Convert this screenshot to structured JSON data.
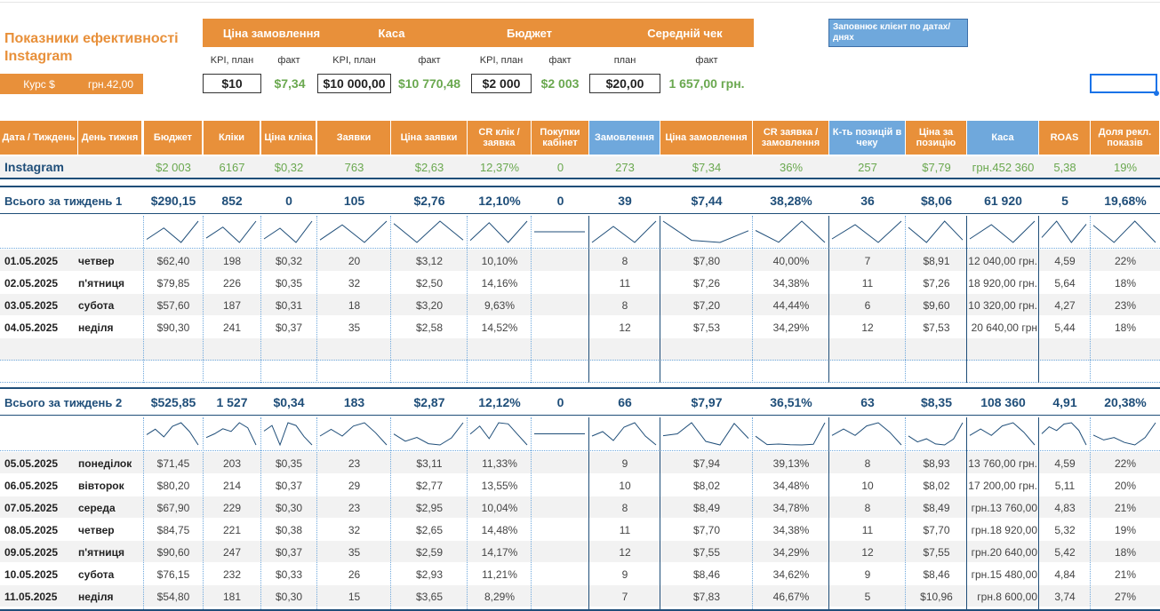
{
  "title": "Показники ефективності Instagram",
  "rate": {
    "label": "Курс $",
    "value": "грн.42,00"
  },
  "kpi_header": [
    "Ціна замовлення",
    "Каса",
    "Бюджет",
    "Середній чек"
  ],
  "kpi_sub": [
    "KPI, план",
    "факт",
    "KPI, план",
    "факт",
    "KPI, план",
    "факт",
    "план",
    "факт"
  ],
  "kpi_values": {
    "order_price_plan": "$10",
    "order_price_fact": "$7,34",
    "kasa_plan": "$10 000,00",
    "kasa_fact": "$10 770,48",
    "budget_plan": "$2 000",
    "budget_fact": "$2 003",
    "avg_check_plan": "$20,00",
    "avg_check_fact": "1 657,00 грн."
  },
  "note": "Заповнює клієнт по датах/днях",
  "columns": [
    "Дата / Тиждень",
    "День тижня",
    "Бюджет",
    "Кліки",
    "Ціна кліка",
    "Заявки",
    "Ціна заявки",
    "CR клік / заявка",
    "Покупки кабінет",
    "Замовлення",
    "Ціна замовлення",
    "CR заявка / замовлення",
    "К-ть позицій в чеку",
    "Ціна за позицію",
    "Каса",
    "ROAS",
    "Доля рекл. показів"
  ],
  "instagram_row": [
    "Instagram",
    "",
    "$2 003",
    "6167",
    "$0,32",
    "763",
    "$2,63",
    "12,37%",
    "0",
    "273",
    "$7,34",
    "36%",
    "257",
    "$7,79",
    "грн.452 360",
    "5,38",
    "19%"
  ],
  "week1": {
    "total": [
      "Всього за тиждень 1",
      "",
      "$290,15",
      "852",
      "0",
      "105",
      "$2,76",
      "12,10%",
      "0",
      "39",
      "$7,44",
      "38,28%",
      "36",
      "$8,06",
      "61 920",
      "5",
      "19,68%"
    ],
    "days": [
      [
        "01.05.2025",
        "четвер",
        "$62,40",
        "198",
        "$0,32",
        "20",
        "$3,12",
        "10,10%",
        "",
        "8",
        "$7,80",
        "40,00%",
        "7",
        "$8,91",
        "12 040,00 грн.",
        "4,59",
        "22%"
      ],
      [
        "02.05.2025",
        "п'ятниця",
        "$79,85",
        "226",
        "$0,35",
        "32",
        "$2,50",
        "14,16%",
        "",
        "11",
        "$7,26",
        "34,38%",
        "11",
        "$7,26",
        "18 920,00 грн.",
        "5,64",
        "18%"
      ],
      [
        "03.05.2025",
        "субота",
        "$57,60",
        "187",
        "$0,31",
        "18",
        "$3,20",
        "9,63%",
        "",
        "8",
        "$7,20",
        "44,44%",
        "6",
        "$9,60",
        "10 320,00 грн.",
        "4,27",
        "23%"
      ],
      [
        "04.05.2025",
        "неділя",
        "$90,30",
        "241",
        "$0,37",
        "35",
        "$2,58",
        "14,52%",
        "",
        "12",
        "$7,53",
        "34,29%",
        "12",
        "$7,53",
        "20 640,00 грн",
        "5,44",
        "18%"
      ]
    ]
  },
  "week2": {
    "total": [
      "Всього за тиждень 2",
      "",
      "$525,85",
      "1 527",
      "$0,34",
      "183",
      "$2,87",
      "12,12%",
      "0",
      "66",
      "$7,97",
      "36,51%",
      "63",
      "$8,35",
      "108 360",
      "4,91",
      "20,38%"
    ],
    "days": [
      [
        "05.05.2025",
        "понеділок",
        "$71,45",
        "203",
        "$0,35",
        "23",
        "$3,11",
        "11,33%",
        "",
        "9",
        "$7,94",
        "39,13%",
        "8",
        "$8,93",
        "13 760,00 грн.",
        "4,59",
        "22%"
      ],
      [
        "06.05.2025",
        "вівторок",
        "$80,20",
        "214",
        "$0,37",
        "29",
        "$2,77",
        "13,55%",
        "",
        "10",
        "$8,02",
        "34,48%",
        "10",
        "$8,02",
        "17 200,00 грн.",
        "5,11",
        "20%"
      ],
      [
        "07.05.2025",
        "середа",
        "$67,90",
        "229",
        "$0,30",
        "23",
        "$2,95",
        "10,04%",
        "",
        "8",
        "$8,49",
        "34,78%",
        "8",
        "$8,49",
        "грн.13 760,00",
        "4,83",
        "21%"
      ],
      [
        "08.05.2025",
        "четвер",
        "$84,75",
        "221",
        "$0,38",
        "32",
        "$2,65",
        "14,48%",
        "",
        "11",
        "$7,70",
        "34,38%",
        "11",
        "$7,70",
        "грн.18 920,00",
        "5,32",
        "19%"
      ],
      [
        "09.05.2025",
        "п'ятниця",
        "$90,60",
        "247",
        "$0,37",
        "35",
        "$2,59",
        "14,17%",
        "",
        "12",
        "$7,55",
        "34,29%",
        "12",
        "$7,55",
        "грн.20 640,00",
        "5,42",
        "18%"
      ],
      [
        "10.05.2025",
        "субота",
        "$76,15",
        "232",
        "$0,33",
        "26",
        "$2,93",
        "11,21%",
        "",
        "9",
        "$8,46",
        "34,62%",
        "9",
        "$8,46",
        "грн.15 480,00",
        "4,84",
        "21%"
      ],
      [
        "11.05.2025",
        "неділя",
        "$54,80",
        "181",
        "$0,30",
        "15",
        "$3,65",
        "8,29%",
        "",
        "7",
        "$7,83",
        "46,67%",
        "5",
        "$10,96",
        "грн.8 600,00",
        "3,74",
        "27%"
      ]
    ]
  },
  "colors": {
    "orange": "#e8903a",
    "blue": "#6fa8dc",
    "navy": "#1f4e79",
    "green": "#6aa84f"
  }
}
